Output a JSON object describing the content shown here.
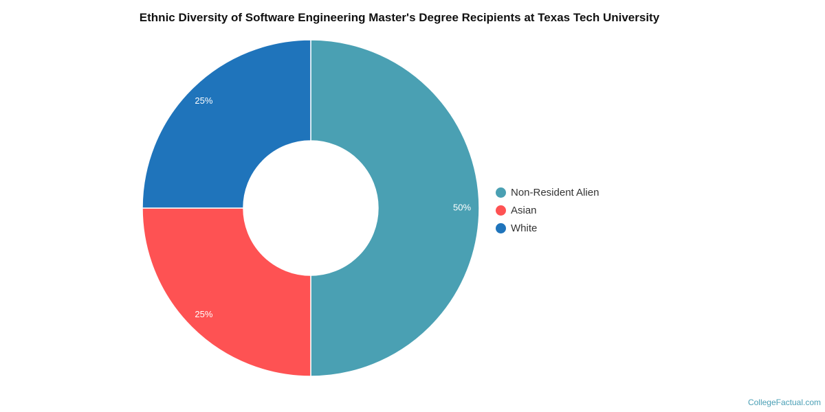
{
  "chart_data": {
    "type": "pie",
    "title": "Ethnic Diversity of Software Engineering Master's Degree Recipients at Texas Tech University",
    "slices": [
      {
        "label": "Non-Resident Alien",
        "value": 50,
        "display": "50%",
        "color": "#4aa0b3"
      },
      {
        "label": "Asian",
        "value": 25,
        "display": "25%",
        "color": "#fe5253"
      },
      {
        "label": "White",
        "value": 25,
        "display": "25%",
        "color": "#1f74bb"
      }
    ],
    "legend_position": "right",
    "donut": true
  },
  "footer": {
    "credit": "CollegeFactual.com"
  }
}
